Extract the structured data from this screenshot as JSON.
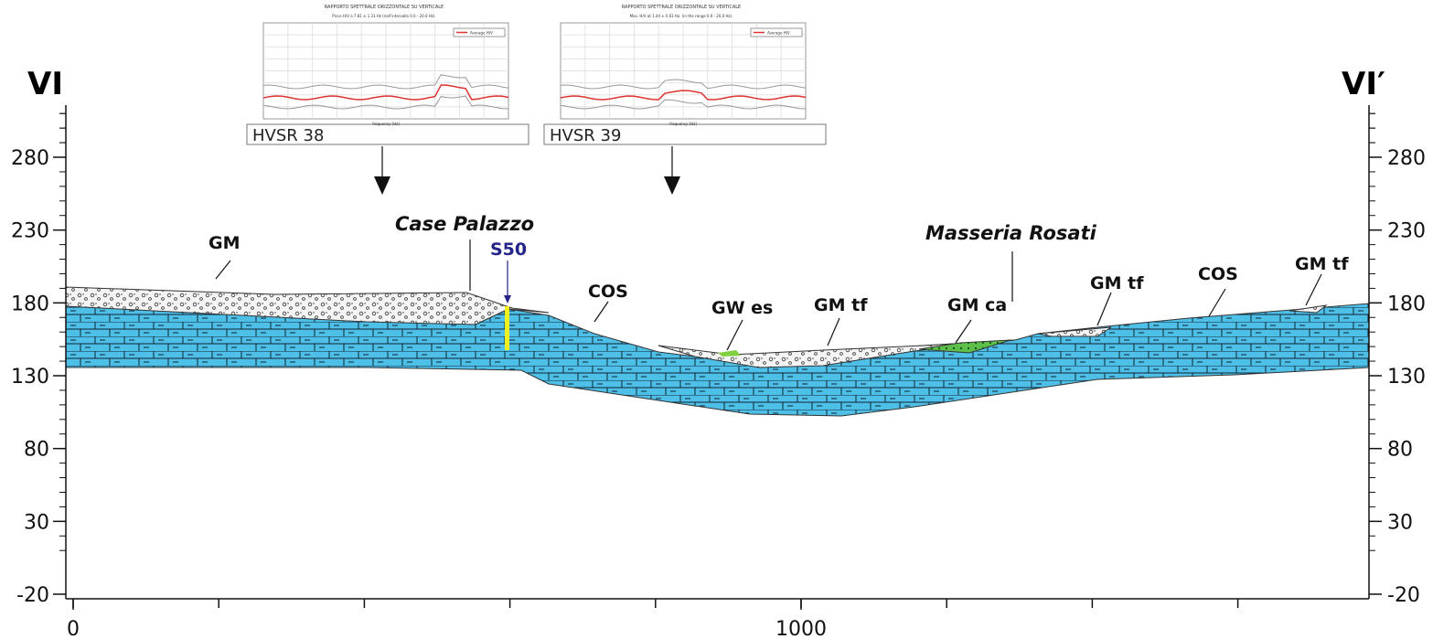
{
  "section": {
    "left_label": "VI",
    "right_label": "VI′",
    "y_ticks": [
      280,
      230,
      180,
      130,
      80,
      30,
      -20
    ],
    "x_ticks": [
      0,
      1000
    ]
  },
  "labels": [
    "GM",
    "Case Palazzo",
    "S50",
    "COS",
    "GW es",
    "GM tf",
    "Masseria Rosati",
    "GM ca",
    "GM tf",
    "COS",
    "GM tf"
  ],
  "insets": [
    {
      "title": "RAPPORTO SPETTRALE ORIZZONTALE SU VERTICALE",
      "subtitle": "Picco H/V a 7.81 ± 1.31 Hz (nell'intervallo 0.0 - 20.0 Hz).",
      "legend": "Average H/V",
      "x_label": "frequency [Hz]",
      "name": "HVSR 38"
    },
    {
      "title": "RAPPORTO SPETTRALE ORIZZONTALE SU VERTICALE",
      "subtitle": "Max. H/V at 1.44 ± 0.61 Hz. (in the range 0.0 - 20.0 Hz).",
      "legend": "Average H/V",
      "x_label": "frequency [Hz]",
      "name": "HVSR 39"
    }
  ]
}
